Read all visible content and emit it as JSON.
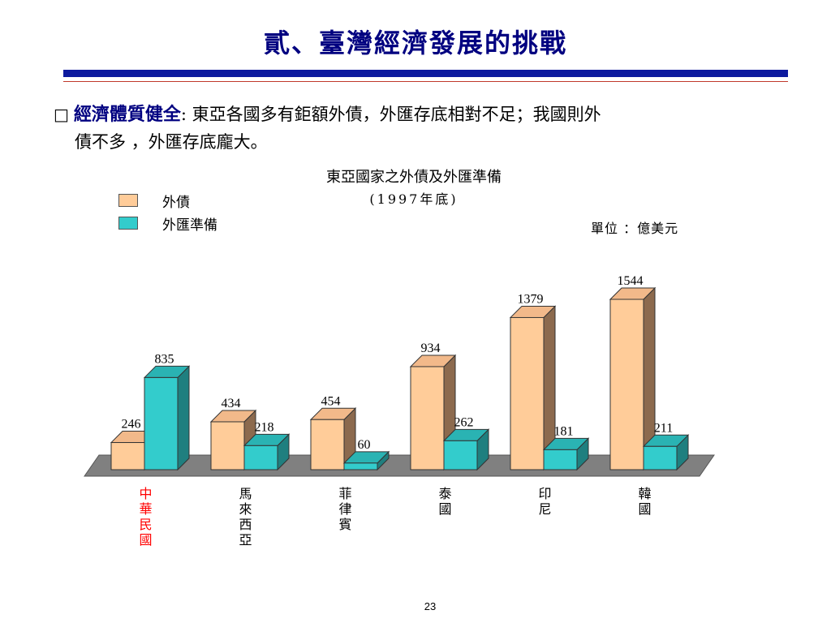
{
  "slide": {
    "title": "貳、臺灣經濟發展的挑戰",
    "bullet_box": "□",
    "bullet_heading": "經濟體質健全",
    "bullet_text_1": ": 東亞各國多有鉅額外債，外匯存底相對不足；我國則外",
    "bullet_text_2": "債不多 ，外匯存底龐大。",
    "page_number": "23"
  },
  "colors": {
    "debt": "#ffcc99",
    "debt_side": "#8c6a4e",
    "reserves": "#33cccc",
    "reserves_side": "#1f7f7f",
    "floor": "#808080",
    "highlight_label": "#ff0000",
    "title": "#000080"
  },
  "chart_data": {
    "type": "bar",
    "title": "東亞國家之外債及外匯準備",
    "subtitle": "(1997年底)",
    "unit_label": "單位 ：億美元",
    "categories": [
      "中華民國",
      "馬來西亞",
      "菲律賓",
      "泰國",
      "印尼",
      "韓國"
    ],
    "category_colors": [
      "#ff0000",
      "#000000",
      "#000000",
      "#000000",
      "#000000",
      "#000000"
    ],
    "series": [
      {
        "name": "外債",
        "values": [
          246,
          434,
          454,
          934,
          1379,
          1544
        ]
      },
      {
        "name": "外匯準備",
        "values": [
          835,
          218,
          60,
          262,
          181,
          211
        ]
      }
    ],
    "ylim": [
      0,
      1544
    ],
    "legend": "top-left",
    "grid": false
  }
}
